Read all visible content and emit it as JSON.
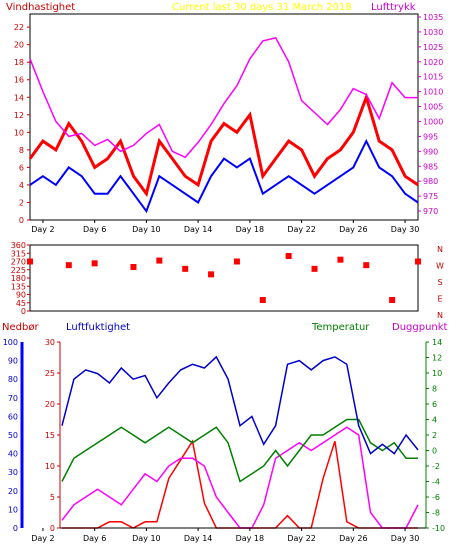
{
  "colors": {
    "wind": "#ff0000",
    "wind_avg": "#0000ff",
    "pressure": "#ff00ff",
    "direction": "#ff0000",
    "humidity": "#0000cc",
    "temperature": "#008000",
    "dewpoint": "#ff00ff",
    "rain": "#ff0000",
    "title": "#ffff00",
    "axis_blue": "#0000ff",
    "axis_magenta": "#cc00cc",
    "axis_green": "#008000",
    "axis_red": "#cc0000"
  },
  "header": {
    "wind_label": "Vindhastighet",
    "title": "Current last 30 days 31 March 2018",
    "pressure_label": "Lufttrykk",
    "rain_label": "Nedbør",
    "humidity_label": "Luftfuktighet",
    "temp_label": "Temperatur",
    "dew_label": "Duggpunkt"
  },
  "chart_data": [
    {
      "type": "line",
      "series": [
        {
          "name": "Vindhastighet",
          "axis": "left",
          "x": [
            0,
            1,
            2,
            3,
            4,
            5,
            6,
            7,
            8,
            9,
            10,
            11,
            12,
            13,
            14,
            15,
            16,
            17,
            18,
            19,
            20,
            21,
            22,
            23,
            24,
            25,
            26,
            27,
            28,
            29,
            30
          ],
          "values": [
            7,
            9,
            8,
            11,
            9,
            6,
            7,
            9,
            5,
            3,
            9,
            7,
            5,
            4,
            9,
            11,
            10,
            12,
            5,
            7,
            9,
            8,
            5,
            7,
            8,
            10,
            14,
            9,
            8,
            5,
            4
          ]
        },
        {
          "name": "",
          "axis": "left",
          "x": [
            0,
            1,
            2,
            3,
            4,
            5,
            6,
            7,
            8,
            9,
            10,
            11,
            12,
            13,
            14,
            15,
            16,
            17,
            18,
            19,
            20,
            21,
            22,
            23,
            24,
            25,
            26,
            27,
            28,
            29,
            30
          ],
          "values": [
            4,
            5,
            4,
            6,
            5,
            3,
            3,
            5,
            3,
            1,
            5,
            4,
            3,
            2,
            5,
            7,
            6,
            7,
            3,
            4,
            5,
            4,
            3,
            4,
            5,
            6,
            9,
            6,
            5,
            3,
            2
          ]
        },
        {
          "name": "Lufttrykk",
          "axis": "right",
          "x": [
            0,
            1,
            2,
            3,
            4,
            5,
            6,
            7,
            8,
            9,
            10,
            11,
            12,
            13,
            14,
            15,
            16,
            17,
            18,
            19,
            20,
            21,
            22,
            23,
            24,
            25,
            26,
            27,
            28,
            29,
            30
          ],
          "values": [
            1021,
            1010,
            1000,
            995,
            996,
            992,
            994,
            990,
            992,
            996,
            999,
            990,
            988,
            993,
            999,
            1006,
            1012,
            1021,
            1027,
            1028,
            1020,
            1007,
            1003,
            999,
            1004,
            1011,
            1009,
            1001,
            1013,
            1008,
            1008
          ]
        }
      ],
      "xlabels": [
        "Day 2",
        "Day 6",
        "Day 10",
        "Day 14",
        "Day 18",
        "Day 22",
        "Day 26",
        "Day 30"
      ],
      "yleft_ticks": [
        0,
        2,
        4,
        6,
        8,
        10,
        12,
        14,
        16,
        18,
        20,
        22
      ],
      "yright_ticks": [
        970,
        975,
        980,
        985,
        990,
        995,
        1000,
        1005,
        1010,
        1015,
        1020,
        1025,
        1030,
        1035
      ],
      "ylim_left": [
        0,
        23.5
      ],
      "ylim_right": [
        967,
        1036
      ],
      "grid": false
    },
    {
      "type": "scatter",
      "series": [
        {
          "name": "",
          "x": [
            0,
            3,
            5,
            8,
            10,
            12,
            14,
            16,
            18,
            20,
            22,
            24,
            26,
            28,
            30
          ],
          "values": [
            270,
            250,
            260,
            240,
            275,
            230,
            200,
            270,
            60,
            300,
            230,
            280,
            250,
            60,
            270
          ]
        }
      ],
      "xlabels": [
        "Day 2",
        "Day 6",
        "Day 10",
        "Day 14",
        "Day 18",
        "Day 22",
        "Day 26",
        "Day 30"
      ],
      "yticks": [
        0,
        45,
        90,
        135,
        180,
        225,
        270,
        315,
        360
      ],
      "compass": [
        "N",
        "W",
        "S",
        "E",
        "N"
      ],
      "ylim": [
        0,
        360
      ]
    },
    {
      "type": "line",
      "series": [
        {
          "name": "Luftfuktighet",
          "axis": "left_blue",
          "x": [
            0,
            1,
            2,
            3,
            4,
            5,
            6,
            7,
            8,
            9,
            10,
            11,
            12,
            13,
            14,
            15,
            16,
            17,
            18,
            19,
            20,
            21,
            22,
            23,
            24,
            25,
            26,
            27,
            28,
            29,
            30
          ],
          "values": [
            55,
            80,
            85,
            83,
            78,
            86,
            80,
            82,
            70,
            78,
            85,
            88,
            86,
            92,
            80,
            55,
            60,
            45,
            55,
            88,
            90,
            85,
            90,
            92,
            88,
            55,
            40,
            45,
            40,
            50,
            42
          ]
        },
        {
          "name": "Temperatur",
          "axis": "right",
          "x": [
            0,
            1,
            2,
            3,
            4,
            5,
            6,
            7,
            8,
            9,
            10,
            11,
            12,
            13,
            14,
            15,
            16,
            17,
            18,
            19,
            20,
            21,
            22,
            23,
            24,
            25,
            26,
            27,
            28,
            29,
            30
          ],
          "values": [
            -4,
            -1,
            0,
            1,
            2,
            3,
            2,
            1,
            2,
            3,
            2,
            1,
            2,
            3,
            1,
            -4,
            -3,
            -2,
            0,
            -2,
            0,
            2,
            2,
            3,
            4,
            4,
            1,
            0,
            1,
            -1,
            -1
          ]
        },
        {
          "name": "Duggpunkt",
          "axis": "right",
          "x": [
            0,
            1,
            2,
            3,
            4,
            5,
            6,
            7,
            8,
            9,
            10,
            11,
            12,
            13,
            14,
            15,
            16,
            17,
            18,
            19,
            20,
            21,
            22,
            23,
            24,
            25,
            26,
            27,
            28,
            29,
            30
          ],
          "values": [
            -9,
            -7,
            -6,
            -5,
            -6,
            -7,
            -5,
            -3,
            -4,
            -2,
            -1,
            -1,
            -2,
            -6,
            -8,
            -10,
            -10,
            -7,
            -1,
            0,
            1,
            0,
            1,
            2,
            3,
            2,
            -8,
            -10,
            -10,
            -10,
            -7
          ]
        },
        {
          "name": "Nedbør",
          "axis": "left_red",
          "x": [
            0,
            1,
            2,
            3,
            4,
            5,
            6,
            7,
            8,
            9,
            10,
            11,
            12,
            13,
            14,
            15,
            16,
            17,
            18,
            19,
            20,
            21,
            22,
            23,
            24,
            25,
            26,
            27,
            28,
            29,
            30
          ],
          "values": [
            0,
            0,
            0,
            0,
            1,
            1,
            0,
            1,
            1,
            8,
            11,
            14,
            4,
            0,
            0,
            0,
            0,
            0,
            0,
            2,
            0,
            0,
            8,
            14,
            1,
            0,
            0,
            0,
            0,
            0,
            0
          ]
        }
      ],
      "xlabels": [
        "Day 2",
        "Day 6",
        "Day 10",
        "Day 14",
        "Day 18",
        "Day 22",
        "Day 26",
        "Day 30"
      ],
      "y_blue_ticks": [
        0,
        10,
        20,
        30,
        40,
        50,
        60,
        70,
        80,
        90,
        100
      ],
      "y_red_ticks": [
        0,
        5,
        10,
        15,
        20,
        25,
        30
      ],
      "y_right_ticks": [
        -10,
        -8,
        -6,
        -4,
        -2,
        0,
        2,
        4,
        6,
        8,
        10,
        12,
        14
      ],
      "ylim_blue": [
        0,
        100
      ],
      "ylim_red": [
        0,
        30
      ],
      "ylim_right": [
        -10,
        14
      ],
      "grid": false
    }
  ]
}
